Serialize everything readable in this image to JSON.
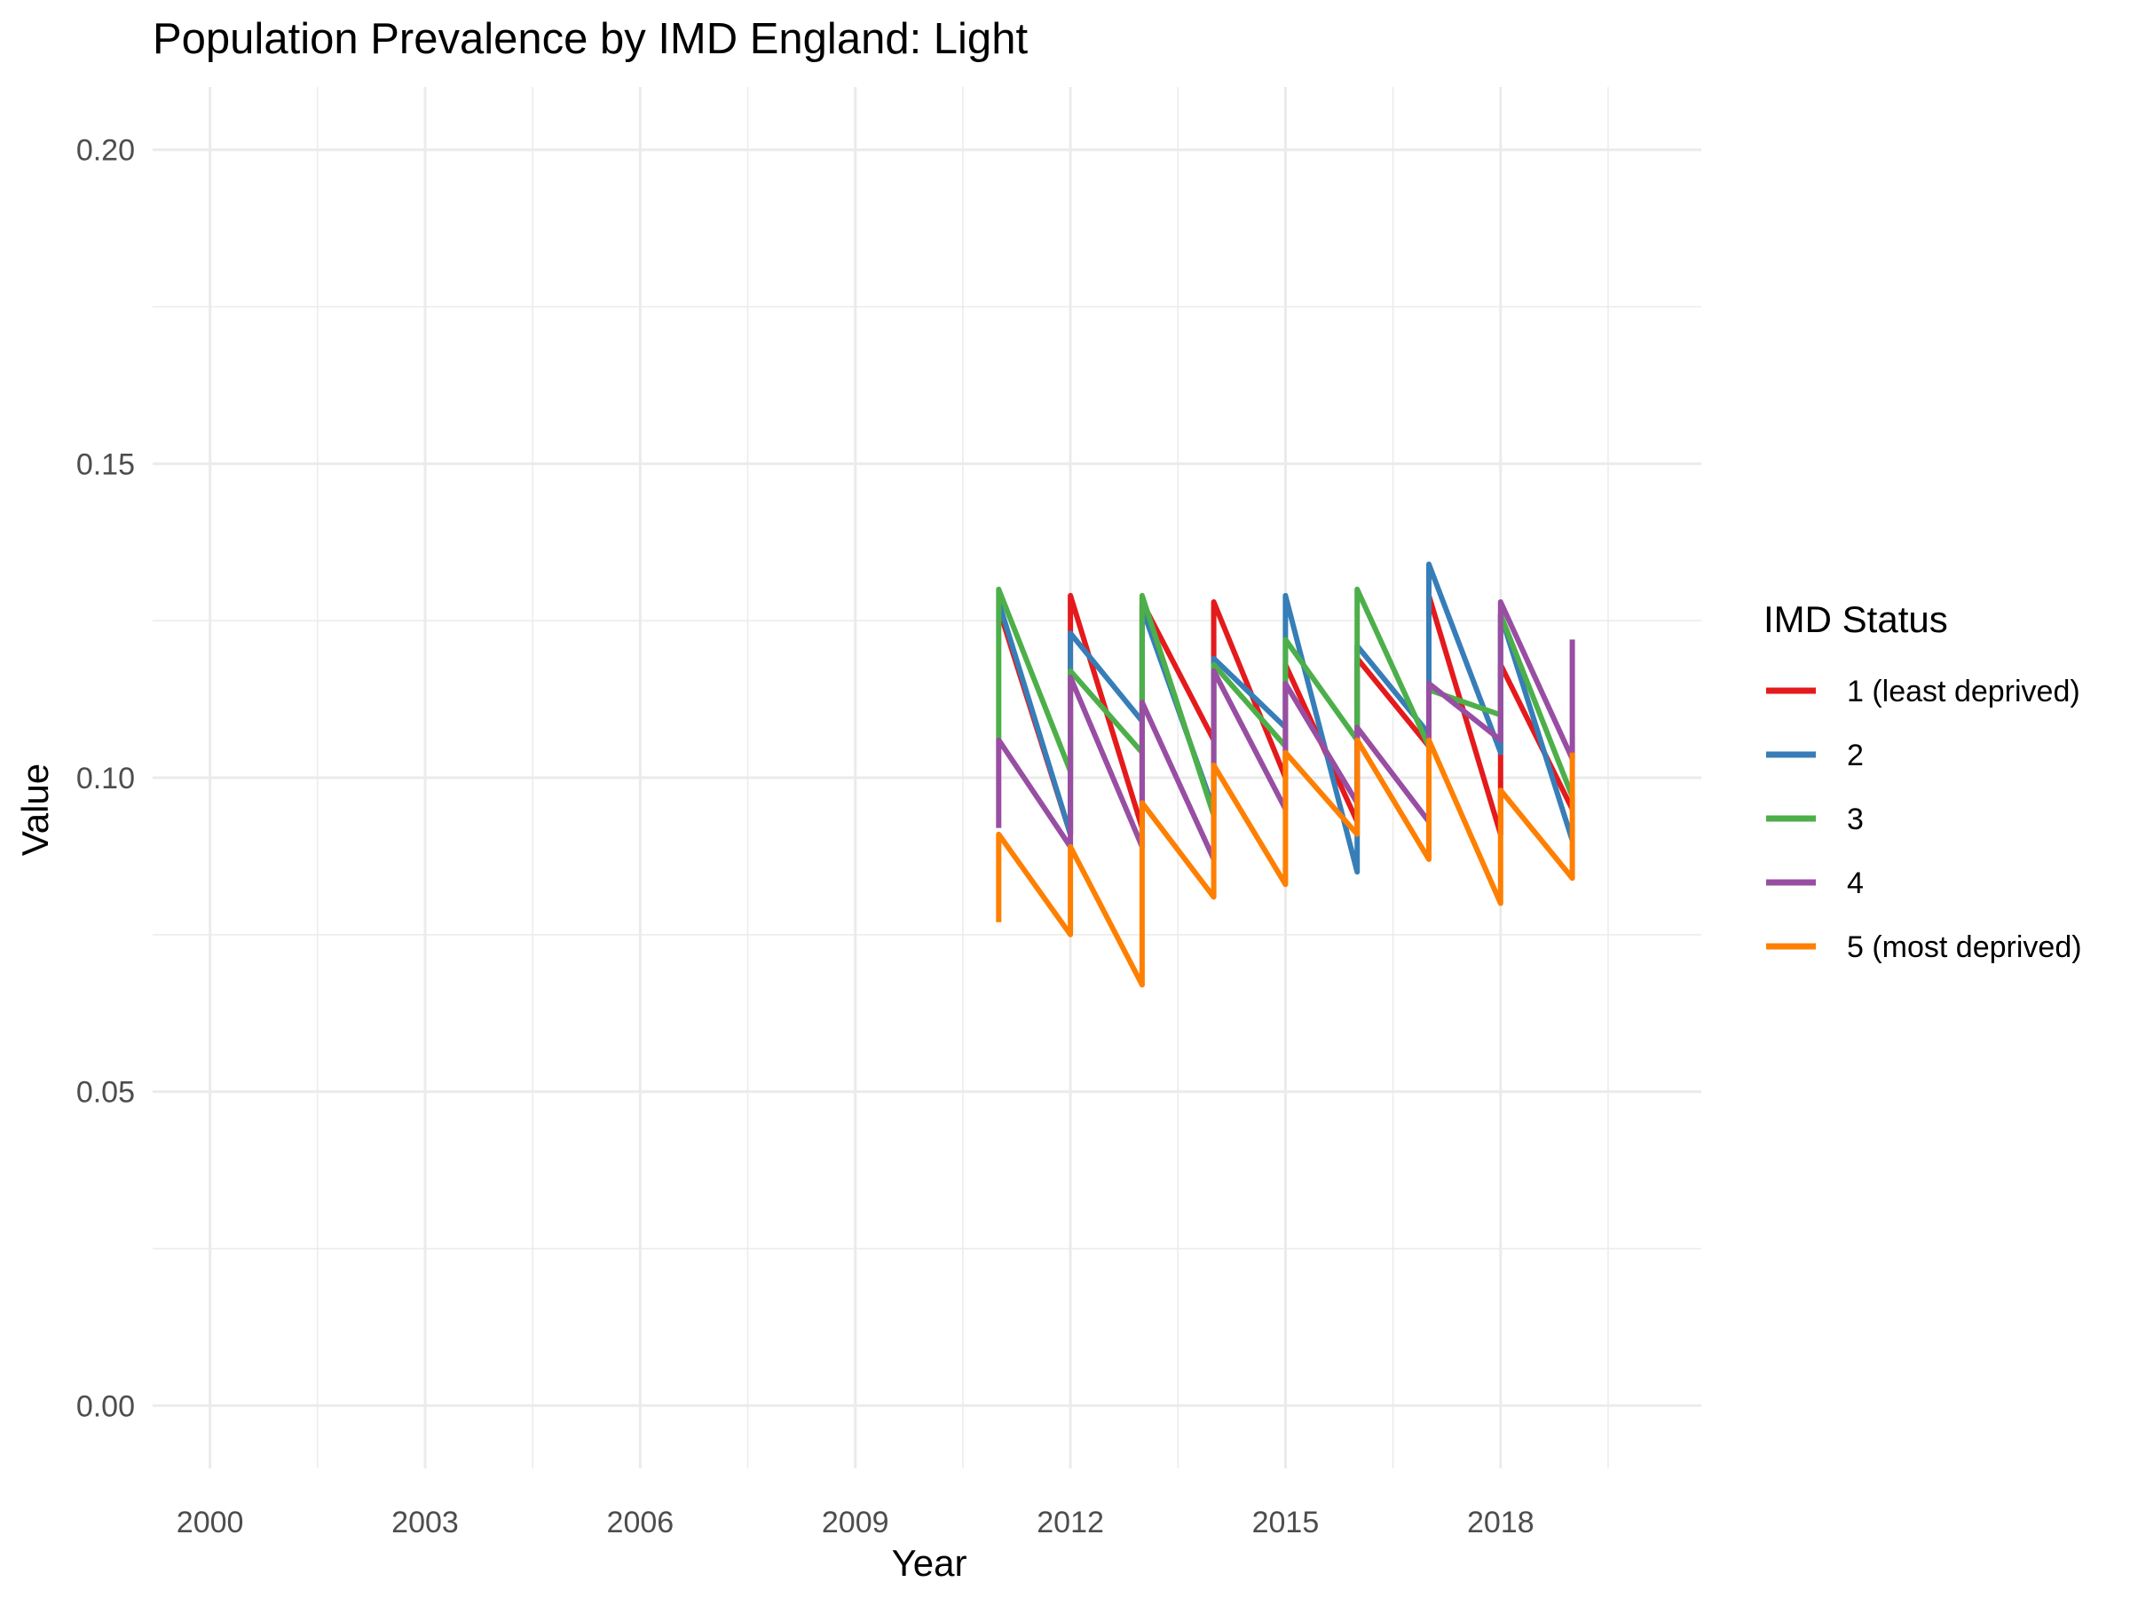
{
  "chart_data": {
    "type": "line",
    "title": "Population Prevalence by IMD England: Light",
    "xlabel": "Year",
    "ylabel": "Value",
    "xlim": [
      1999.2,
      2020.8
    ],
    "ylim": [
      -0.01,
      0.21
    ],
    "x_ticks": [
      2000,
      2003,
      2006,
      2009,
      2012,
      2015,
      2018
    ],
    "x_tick_labels": [
      "2000",
      "2003",
      "2006",
      "2009",
      "2012",
      "2015",
      "2018"
    ],
    "y_ticks": [
      0,
      0.05,
      0.1,
      0.15,
      0.2
    ],
    "y_tick_labels": [
      "0.00",
      "0.05",
      "0.10",
      "0.15",
      "0.20"
    ],
    "grid": true,
    "legend": {
      "title": "IMD Status",
      "position": "right"
    },
    "series": [
      {
        "name": "1 (least deprived)",
        "color": "#E41A1C",
        "points": [
          [
            2011,
            0.127
          ],
          [
            2012,
            0.091
          ],
          [
            2012,
            0.129
          ],
          [
            2013,
            0.092
          ],
          [
            2013,
            0.128
          ],
          [
            2014,
            0.106
          ],
          [
            2014,
            0.128
          ],
          [
            2015,
            0.1
          ],
          [
            2015,
            0.118
          ],
          [
            2016,
            0.093
          ],
          [
            2016,
            0.119
          ],
          [
            2017,
            0.105
          ],
          [
            2017,
            0.129
          ],
          [
            2018,
            0.091
          ],
          [
            2018,
            0.118
          ],
          [
            2019,
            0.095
          ]
        ]
      },
      {
        "name": "2",
        "color": "#377EB8",
        "points": [
          [
            2011,
            0.128
          ],
          [
            2012,
            0.091
          ],
          [
            2012,
            0.123
          ],
          [
            2013,
            0.109
          ],
          [
            2013,
            0.127
          ],
          [
            2014,
            0.095
          ],
          [
            2014,
            0.119
          ],
          [
            2015,
            0.108
          ],
          [
            2015,
            0.129
          ],
          [
            2016,
            0.085
          ],
          [
            2016,
            0.121
          ],
          [
            2017,
            0.107
          ],
          [
            2017,
            0.134
          ],
          [
            2018,
            0.104
          ],
          [
            2018,
            0.126
          ],
          [
            2019,
            0.09
          ]
        ]
      },
      {
        "name": "3",
        "color": "#4DAF4A",
        "points": [
          [
            2011,
            0.106
          ],
          [
            2011,
            0.13
          ],
          [
            2012,
            0.101
          ],
          [
            2012,
            0.117
          ],
          [
            2013,
            0.104
          ],
          [
            2013,
            0.129
          ],
          [
            2014,
            0.094
          ],
          [
            2014,
            0.118
          ],
          [
            2015,
            0.105
          ],
          [
            2015,
            0.122
          ],
          [
            2016,
            0.106
          ],
          [
            2016,
            0.13
          ],
          [
            2017,
            0.105
          ],
          [
            2017,
            0.114
          ],
          [
            2018,
            0.11
          ],
          [
            2018,
            0.126
          ],
          [
            2019,
            0.097
          ]
        ]
      },
      {
        "name": "4",
        "color": "#984EA3",
        "points": [
          [
            2011,
            0.092
          ],
          [
            2011,
            0.106
          ],
          [
            2012,
            0.089
          ],
          [
            2012,
            0.116
          ],
          [
            2013,
            0.089
          ],
          [
            2013,
            0.112
          ],
          [
            2014,
            0.087
          ],
          [
            2014,
            0.117
          ],
          [
            2015,
            0.095
          ],
          [
            2015,
            0.115
          ],
          [
            2016,
            0.096
          ],
          [
            2016,
            0.108
          ],
          [
            2017,
            0.093
          ],
          [
            2017,
            0.115
          ],
          [
            2018,
            0.106
          ],
          [
            2018,
            0.128
          ],
          [
            2019,
            0.103
          ],
          [
            2019,
            0.122
          ]
        ]
      },
      {
        "name": "5 (most deprived)",
        "color": "#FF7F00",
        "points": [
          [
            2011,
            0.077
          ],
          [
            2011,
            0.091
          ],
          [
            2012,
            0.075
          ],
          [
            2012,
            0.089
          ],
          [
            2013,
            0.067
          ],
          [
            2013,
            0.096
          ],
          [
            2014,
            0.081
          ],
          [
            2014,
            0.102
          ],
          [
            2015,
            0.083
          ],
          [
            2015,
            0.104
          ],
          [
            2016,
            0.091
          ],
          [
            2016,
            0.106
          ],
          [
            2017,
            0.087
          ],
          [
            2017,
            0.106
          ],
          [
            2018,
            0.08
          ],
          [
            2018,
            0.098
          ],
          [
            2019,
            0.084
          ],
          [
            2019,
            0.104
          ]
        ]
      }
    ]
  }
}
